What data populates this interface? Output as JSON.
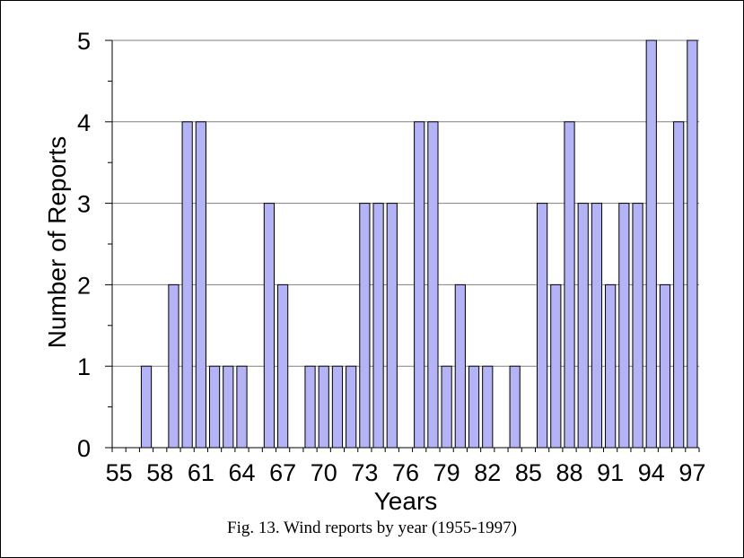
{
  "chart_data": {
    "type": "bar",
    "xlabel": "Years",
    "ylabel": "Number of Reports",
    "ylim": [
      0,
      5
    ],
    "yticks": [
      "0",
      "1",
      "2",
      "3",
      "4",
      "5"
    ],
    "xtick_labels": [
      "55",
      "58",
      "61",
      "64",
      "67",
      "70",
      "73",
      "76",
      "79",
      "82",
      "85",
      "88",
      "91",
      "94",
      "97"
    ],
    "categories": [
      "1955",
      "1956",
      "1957",
      "1958",
      "1959",
      "1960",
      "1961",
      "1962",
      "1963",
      "1964",
      "1965",
      "1966",
      "1967",
      "1968",
      "1969",
      "1970",
      "1971",
      "1972",
      "1973",
      "1974",
      "1975",
      "1976",
      "1977",
      "1978",
      "1979",
      "1980",
      "1981",
      "1982",
      "1983",
      "1984",
      "1985",
      "1986",
      "1987",
      "1988",
      "1989",
      "1990",
      "1991",
      "1992",
      "1993",
      "1994",
      "1995",
      "1996",
      "1997"
    ],
    "values": [
      0,
      0,
      1,
      0,
      2,
      4,
      4,
      1,
      1,
      1,
      0,
      3,
      2,
      0,
      1,
      1,
      1,
      1,
      3,
      3,
      3,
      0,
      4,
      4,
      1,
      2,
      1,
      1,
      0,
      1,
      0,
      3,
      2,
      4,
      3,
      3,
      2,
      3,
      3,
      5,
      2,
      4,
      5
    ],
    "bar_color": "#b3b3f5",
    "grid": true
  },
  "caption": "Fig. 13. Wind reports by year (1955-1997)"
}
